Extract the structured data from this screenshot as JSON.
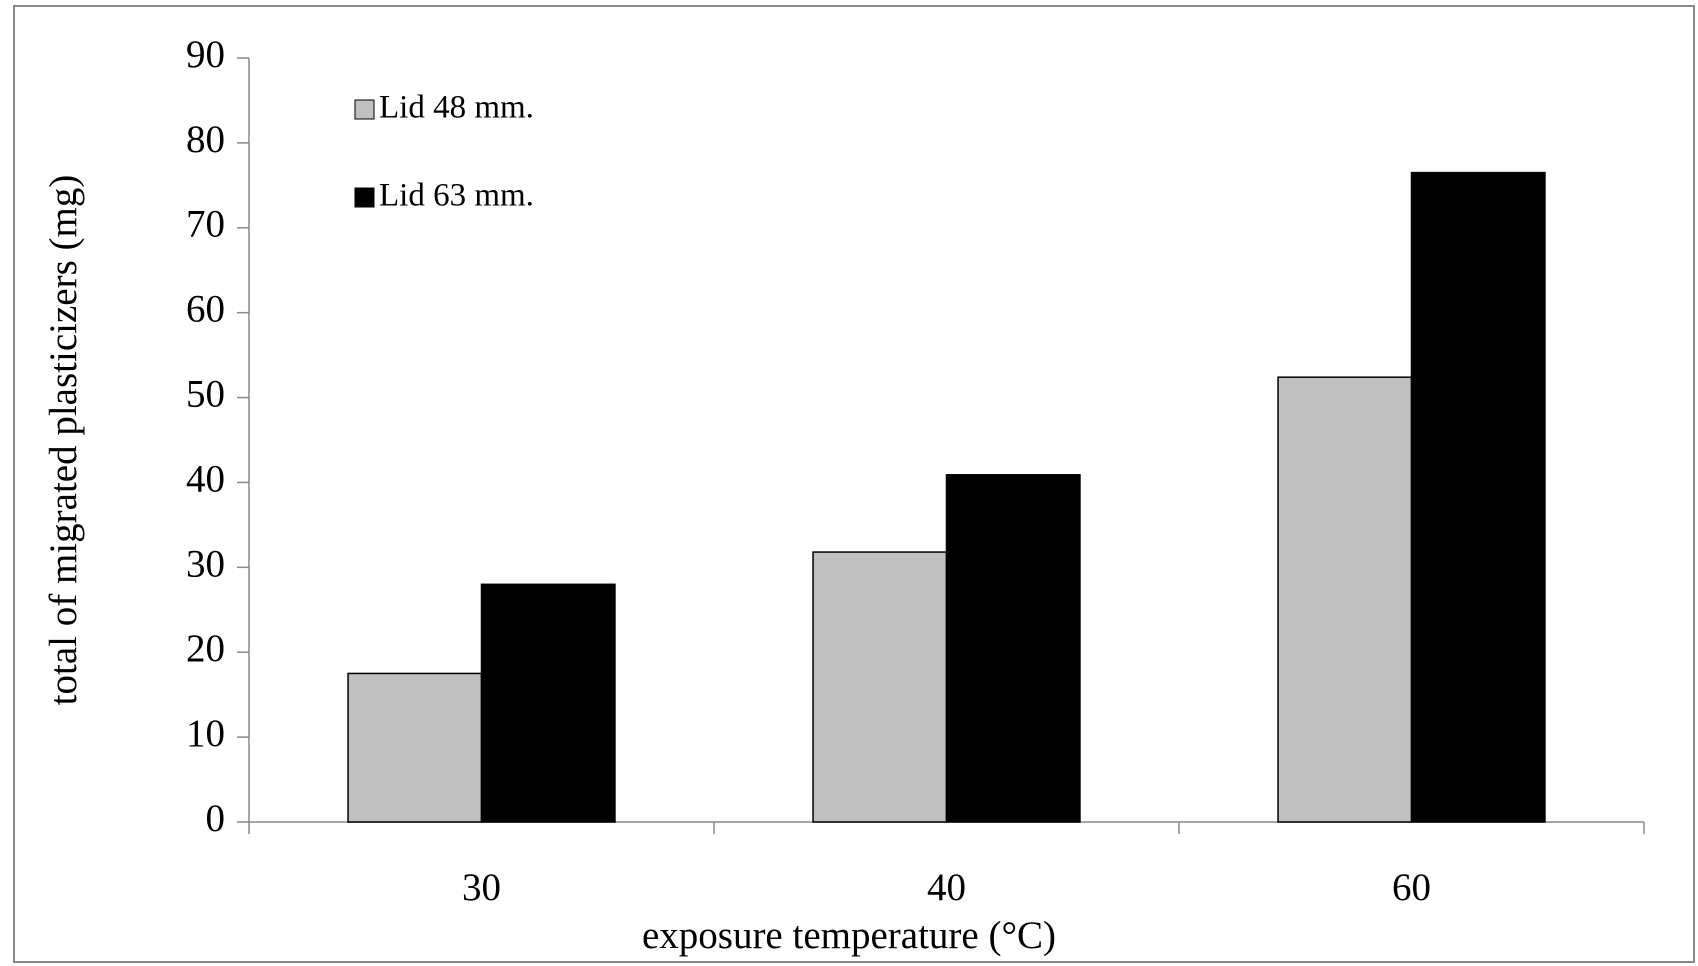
{
  "chart_data": {
    "type": "bar",
    "categories": [
      "30",
      "40",
      "60"
    ],
    "series": [
      {
        "name": "Lid 48 mm.",
        "color": "#c0c0c0",
        "values": [
          17.5,
          31.8,
          52.4
        ]
      },
      {
        "name": "Lid 63 mm.",
        "color": "#000000",
        "values": [
          28,
          40.9,
          76.5
        ]
      }
    ],
    "xlabel": "exposure temperature (°C)",
    "ylabel": "total of migrated plasticizers (mg)",
    "ylim": [
      0,
      90
    ],
    "yticks": [
      0,
      10,
      20,
      30,
      40,
      50,
      60,
      70,
      80,
      90
    ],
    "legend": "upper left"
  }
}
